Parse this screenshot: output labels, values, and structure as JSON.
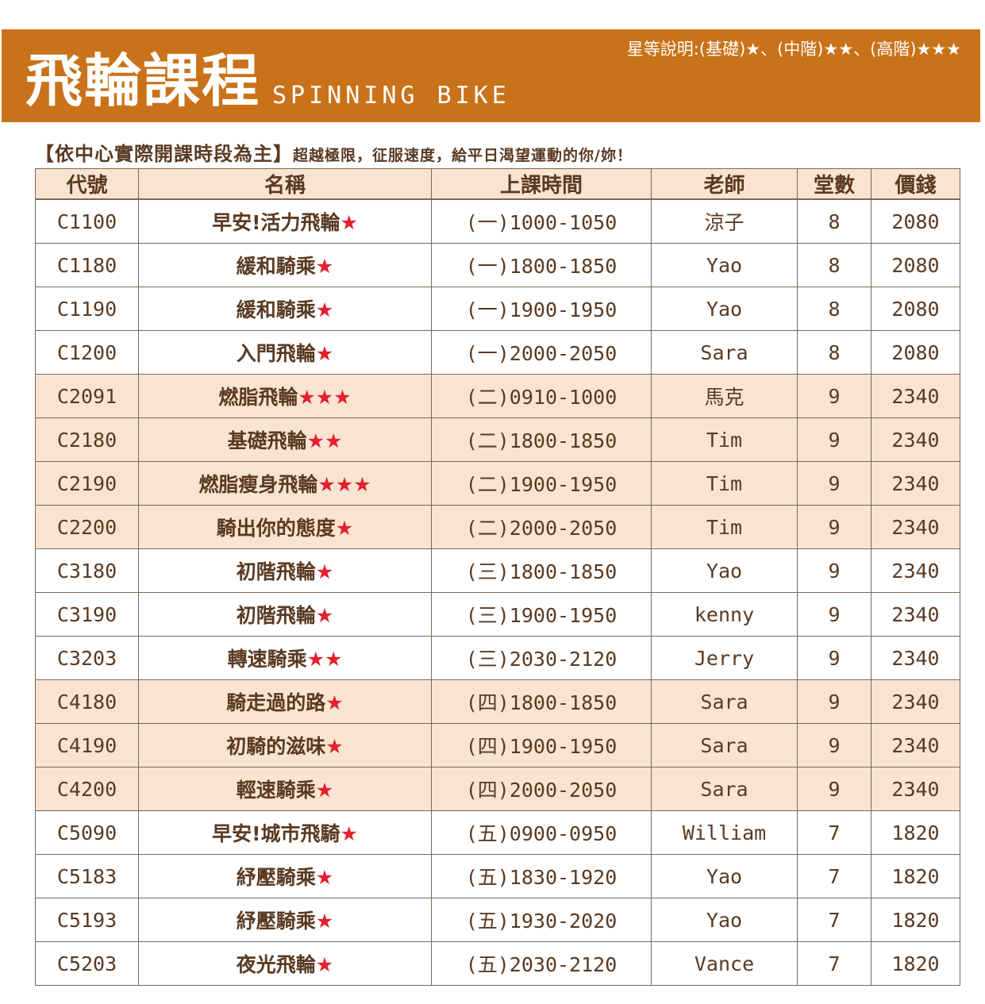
{
  "header": {
    "title": "飛輪課程",
    "title_en": "SPINNING BIKE",
    "star_legend": "星等說明:(基礎)★、(中階)★★、(高階)★★★"
  },
  "note": {
    "bracket": "【依中心實際開課時段為主】",
    "text": "超越極限，征服速度，給平日渴望運動的你/妳！"
  },
  "colors": {
    "banner": "#c97219",
    "highlight": "#f9e4d2",
    "star": "#e3202b",
    "text": "#5a3a22"
  },
  "table": {
    "headers": [
      "代號",
      "名稱",
      "上課時間",
      "老師",
      "堂數",
      "價錢"
    ],
    "rows": [
      {
        "code": "C1100",
        "name": "早安!活力飛輪",
        "stars": "★",
        "time": "(一)1000-1050",
        "teacher": "涼子",
        "sessions": "8",
        "price": "2080",
        "highlight": false
      },
      {
        "code": "C1180",
        "name": "緩和騎乘",
        "stars": "★",
        "time": "(一)1800-1850",
        "teacher": "Yao",
        "sessions": "8",
        "price": "2080",
        "highlight": false
      },
      {
        "code": "C1190",
        "name": "緩和騎乘",
        "stars": "★",
        "time": "(一)1900-1950",
        "teacher": "Yao",
        "sessions": "8",
        "price": "2080",
        "highlight": false
      },
      {
        "code": "C1200",
        "name": "入門飛輪",
        "stars": "★",
        "time": "(一)2000-2050",
        "teacher": "Sara",
        "sessions": "8",
        "price": "2080",
        "highlight": false
      },
      {
        "code": "C2091",
        "name": "燃脂飛輪",
        "stars": "★★★",
        "time": "(二)0910-1000",
        "teacher": "馬克",
        "sessions": "9",
        "price": "2340",
        "highlight": true
      },
      {
        "code": "C2180",
        "name": "基礎飛輪",
        "stars": "★★",
        "time": "(二)1800-1850",
        "teacher": "Tim",
        "sessions": "9",
        "price": "2340",
        "highlight": true
      },
      {
        "code": "C2190",
        "name": "燃脂瘦身飛輪",
        "stars": "★★★",
        "time": "(二)1900-1950",
        "teacher": "Tim",
        "sessions": "9",
        "price": "2340",
        "highlight": true
      },
      {
        "code": "C2200",
        "name": "騎出你的態度",
        "stars": "★",
        "time": "(二)2000-2050",
        "teacher": "Tim",
        "sessions": "9",
        "price": "2340",
        "highlight": true
      },
      {
        "code": "C3180",
        "name": "初階飛輪",
        "stars": "★",
        "time": "(三)1800-1850",
        "teacher": "Yao",
        "sessions": "9",
        "price": "2340",
        "highlight": false
      },
      {
        "code": "C3190",
        "name": "初階飛輪",
        "stars": "★",
        "time": "(三)1900-1950",
        "teacher": "kenny",
        "sessions": "9",
        "price": "2340",
        "highlight": false
      },
      {
        "code": "C3203",
        "name": "轉速騎乘",
        "stars": "★★",
        "time": "(三)2030-2120",
        "teacher": "Jerry",
        "sessions": "9",
        "price": "2340",
        "highlight": false
      },
      {
        "code": "C4180",
        "name": "騎走過的路",
        "stars": "★",
        "time": "(四)1800-1850",
        "teacher": "Sara",
        "sessions": "9",
        "price": "2340",
        "highlight": true
      },
      {
        "code": "C4190",
        "name": "初騎的滋味",
        "stars": "★",
        "time": "(四)1900-1950",
        "teacher": "Sara",
        "sessions": "9",
        "price": "2340",
        "highlight": true
      },
      {
        "code": "C4200",
        "name": "輕速騎乘",
        "stars": "★",
        "time": "(四)2000-2050",
        "teacher": "Sara",
        "sessions": "9",
        "price": "2340",
        "highlight": true
      },
      {
        "code": "C5090",
        "name": "早安!城市飛騎",
        "stars": "★",
        "time": "(五)0900-0950",
        "teacher": "William",
        "sessions": "7",
        "price": "1820",
        "highlight": false
      },
      {
        "code": "C5183",
        "name": "紓壓騎乘",
        "stars": "★",
        "time": "(五)1830-1920",
        "teacher": "Yao",
        "sessions": "7",
        "price": "1820",
        "highlight": false
      },
      {
        "code": "C5193",
        "name": "紓壓騎乘",
        "stars": "★",
        "time": "(五)1930-2020",
        "teacher": "Yao",
        "sessions": "7",
        "price": "1820",
        "highlight": false
      },
      {
        "code": "C5203",
        "name": "夜光飛輪",
        "stars": "★",
        "time": "(五)2030-2120",
        "teacher": "Vance",
        "sessions": "7",
        "price": "1820",
        "highlight": false
      }
    ]
  }
}
